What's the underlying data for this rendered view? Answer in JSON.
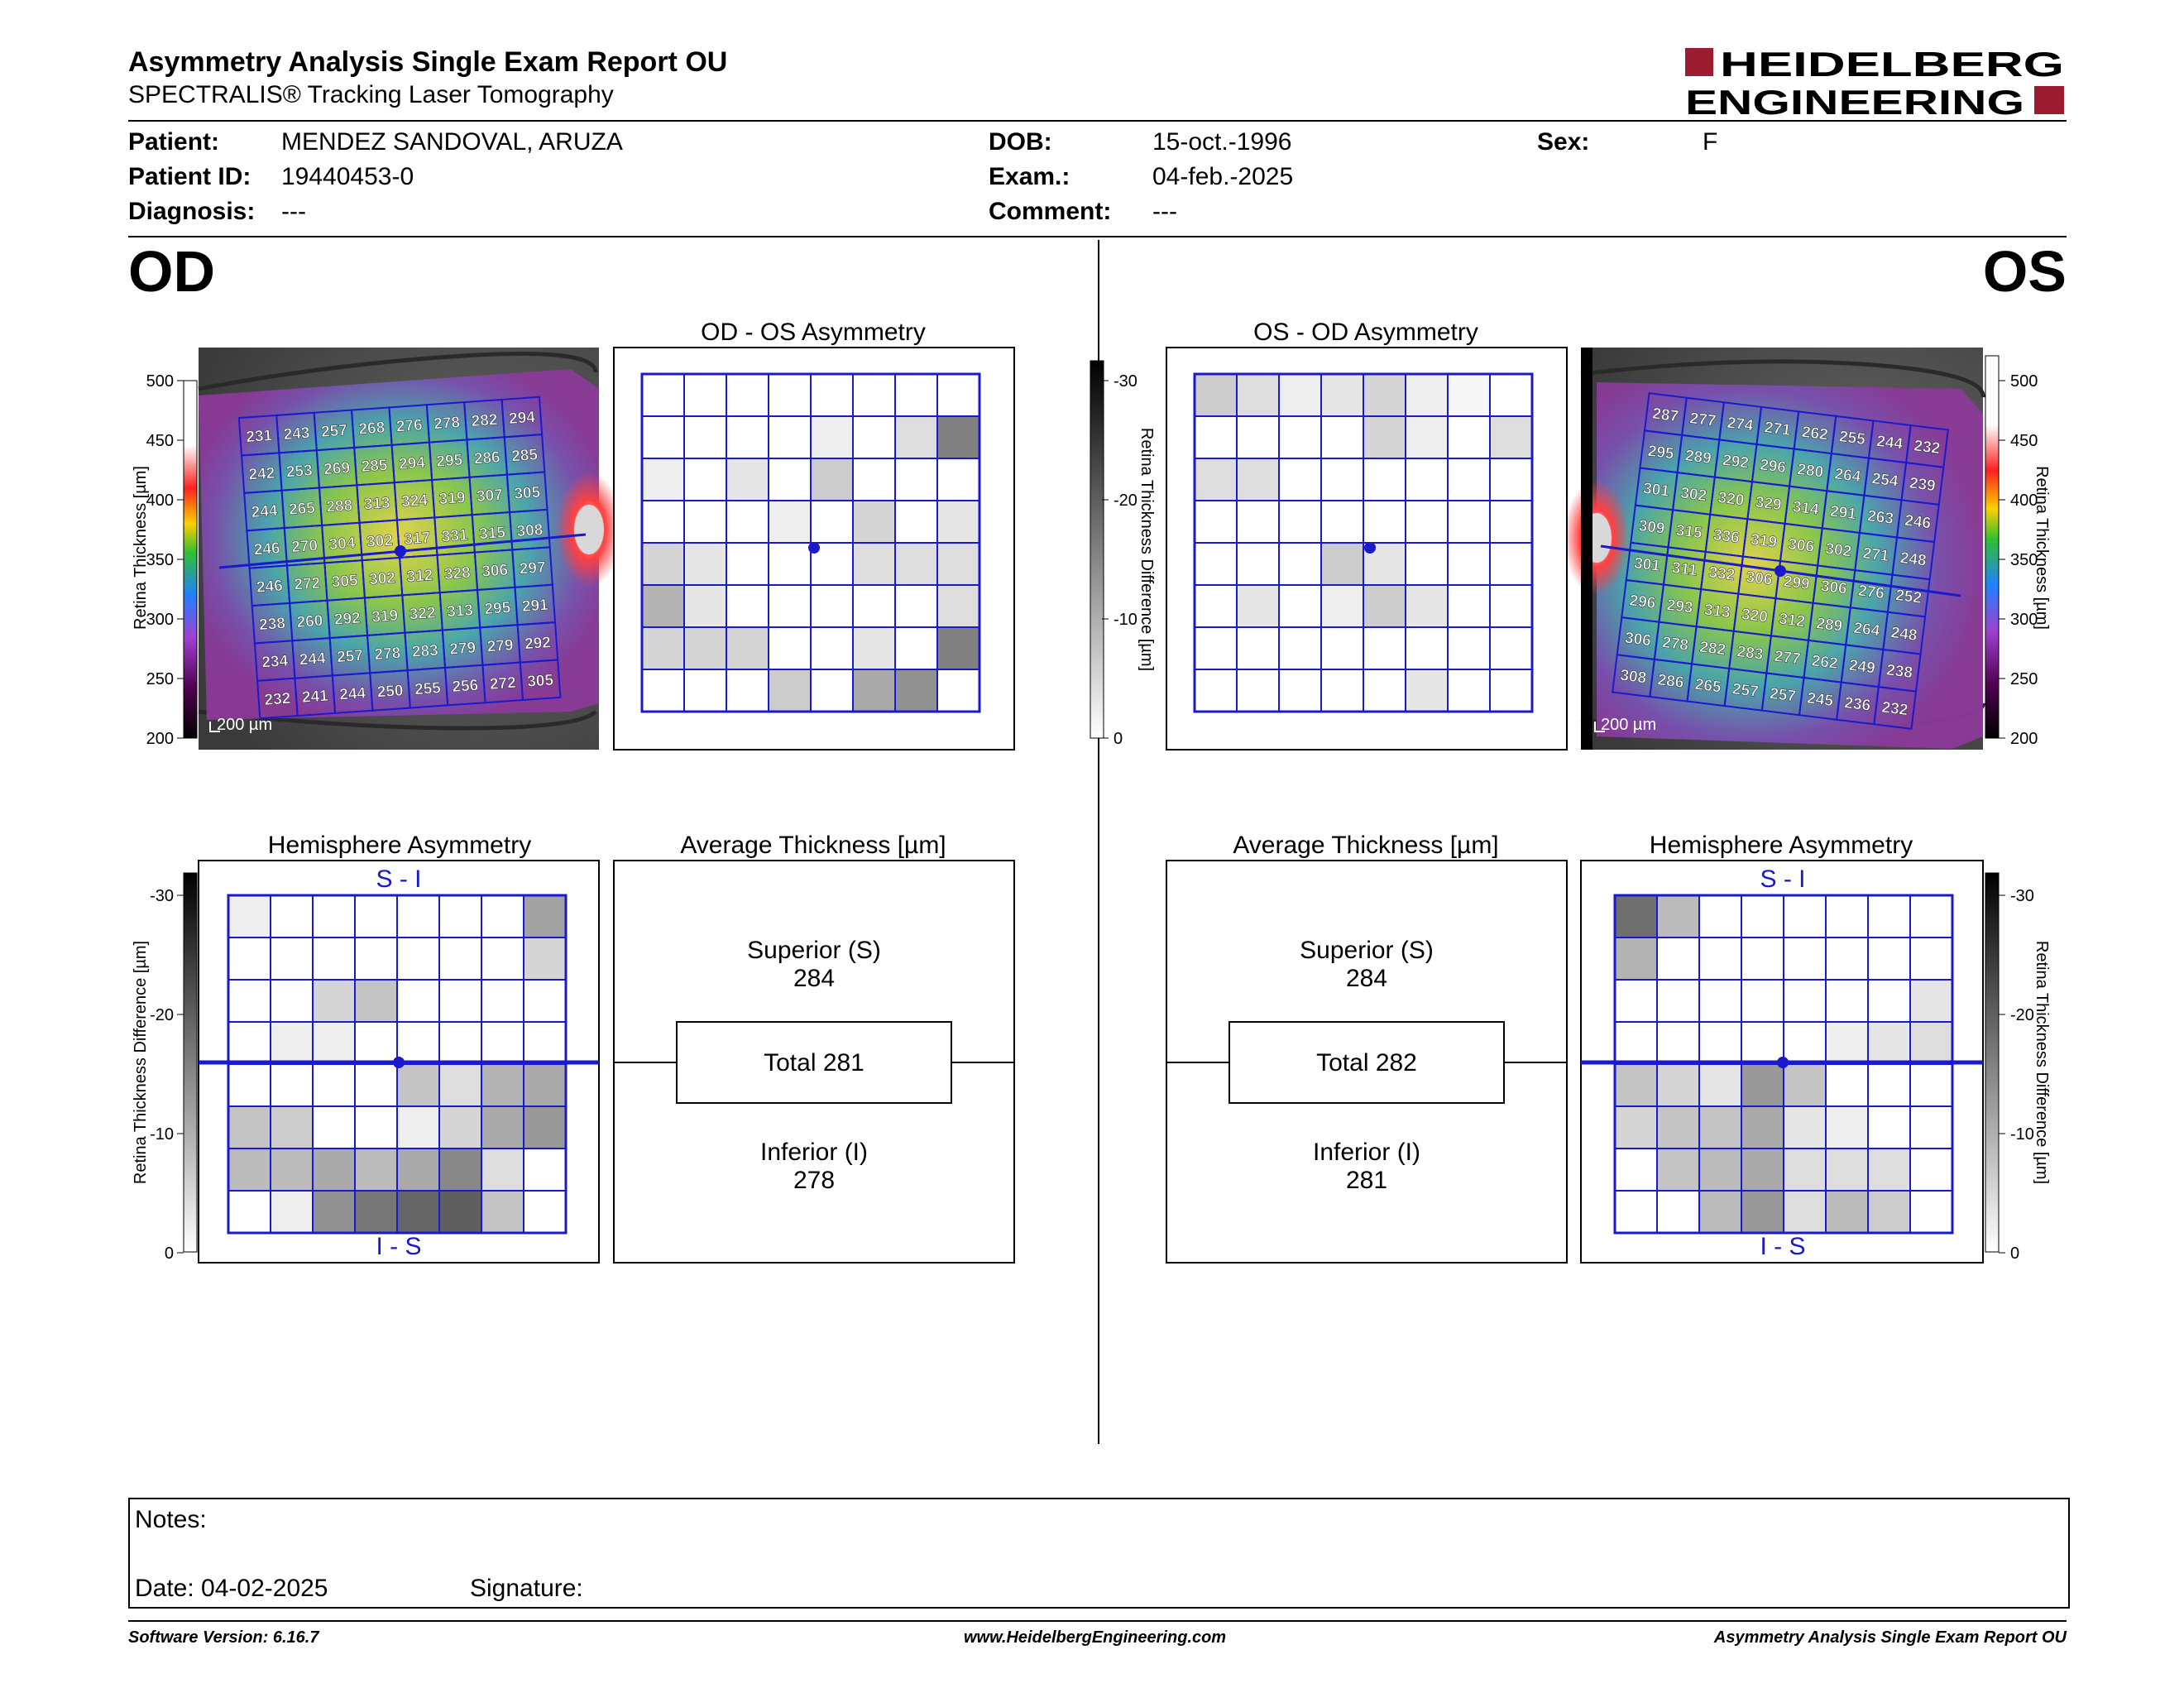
{
  "header": {
    "title": "Asymmetry Analysis Single Exam Report OU",
    "subtitle": "SPECTRALIS® Tracking Laser Tomography",
    "logo_line1": "HEIDELBERG",
    "logo_line2": "ENGINEERING",
    "logo_color": "#9b1b30"
  },
  "patient": {
    "patient_label": "Patient:",
    "patient_value": "MENDEZ SANDOVAL, ARUZA",
    "id_label": "Patient ID:",
    "id_value": "19440453-0",
    "diagnosis_label": "Diagnosis:",
    "diagnosis_value": "---",
    "dob_label": "DOB:",
    "dob_value": "15-oct.-1996",
    "exam_label": "Exam.:",
    "exam_value": "04-feb.-2025",
    "comment_label": "Comment:",
    "comment_value": "---",
    "sex_label": "Sex:",
    "sex_value": "F"
  },
  "eyes": {
    "od": "OD",
    "os": "OS"
  },
  "panels": {
    "od_os_title": "OD - OS Asymmetry",
    "os_od_title": "OS - OD Asymmetry",
    "hemi_title": "Hemisphere Asymmetry",
    "avg_title": "Average Thickness [µm]",
    "s_minus_i": "S - I",
    "i_minus_s": "I - S"
  },
  "scales": {
    "thickness_label": "Retina Thickness [µm]",
    "thickness_ticks": [
      "500",
      "450",
      "400",
      "350",
      "300",
      "250",
      "200"
    ],
    "diff_label": "Retina Thickness Difference [µm]",
    "diff_ticks": [
      "-30",
      "-20",
      "-10",
      "0"
    ],
    "scalebar": "200 µm"
  },
  "od_average": {
    "superior_label": "Superior (S)",
    "superior_value": "284",
    "total": "Total 281",
    "inferior_label": "Inferior (I)",
    "inferior_value": "278"
  },
  "os_average": {
    "superior_label": "Superior (S)",
    "superior_value": "284",
    "total": "Total 282",
    "inferior_label": "Inferior (I)",
    "inferior_value": "281"
  },
  "od_thickness": [
    [
      231,
      243,
      257,
      268,
      276,
      278,
      282,
      294
    ],
    [
      242,
      253,
      269,
      285,
      294,
      295,
      286,
      285
    ],
    [
      244,
      265,
      288,
      313,
      324,
      319,
      307,
      305
    ],
    [
      246,
      270,
      304,
      302,
      317,
      331,
      315,
      308
    ],
    [
      246,
      272,
      305,
      302,
      312,
      328,
      306,
      297
    ],
    [
      238,
      260,
      292,
      319,
      322,
      313,
      295,
      291
    ],
    [
      234,
      244,
      257,
      278,
      283,
      279,
      279,
      292
    ],
    [
      232,
      241,
      244,
      250,
      255,
      256,
      272,
      305
    ]
  ],
  "os_thickness": [
    [
      287,
      277,
      274,
      271,
      262,
      255,
      244,
      232
    ],
    [
      295,
      289,
      292,
      296,
      280,
      264,
      254,
      239
    ],
    [
      301,
      302,
      320,
      329,
      314,
      291,
      263,
      246
    ],
    [
      309,
      315,
      336,
      319,
      306,
      302,
      271,
      248
    ],
    [
      301,
      311,
      332,
      306,
      299,
      306,
      276,
      252
    ],
    [
      296,
      293,
      313,
      320,
      312,
      289,
      264,
      248
    ],
    [
      306,
      278,
      282,
      283,
      277,
      262,
      249,
      238
    ],
    [
      308,
      286,
      265,
      257,
      257,
      245,
      236,
      232
    ]
  ],
  "od_os_asym": [
    [
      0,
      0,
      0,
      0,
      0,
      0,
      0,
      0
    ],
    [
      0,
      0,
      0,
      0,
      2,
      0,
      4,
      15
    ],
    [
      2,
      0,
      3,
      0,
      6,
      0,
      0,
      0
    ],
    [
      0,
      0,
      0,
      2,
      0,
      5,
      0,
      3
    ],
    [
      5,
      3,
      0,
      0,
      0,
      4,
      4,
      4
    ],
    [
      9,
      3,
      0,
      0,
      0,
      0,
      0,
      4
    ],
    [
      5,
      5,
      5,
      0,
      0,
      3,
      0,
      15
    ],
    [
      0,
      0,
      0,
      6,
      0,
      10,
      13,
      0
    ]
  ],
  "os_od_asym": [
    [
      6,
      4,
      2,
      3,
      5,
      2,
      1,
      0
    ],
    [
      0,
      0,
      0,
      0,
      5,
      2,
      0,
      4
    ],
    [
      4,
      4,
      0,
      0,
      0,
      0,
      0,
      0
    ],
    [
      0,
      0,
      0,
      0,
      0,
      0,
      0,
      0
    ],
    [
      0,
      0,
      0,
      6,
      3,
      0,
      0,
      0
    ],
    [
      0,
      3,
      0,
      2,
      6,
      3,
      0,
      0
    ],
    [
      0,
      0,
      0,
      0,
      0,
      0,
      0,
      0
    ],
    [
      0,
      0,
      0,
      0,
      0,
      3,
      0,
      0
    ]
  ],
  "od_hemi": [
    [
      2,
      0,
      0,
      0,
      0,
      0,
      0,
      11
    ],
    [
      0,
      0,
      0,
      0,
      0,
      0,
      0,
      5
    ],
    [
      0,
      0,
      5,
      7,
      0,
      0,
      0,
      0
    ],
    [
      0,
      2,
      2,
      0,
      0,
      0,
      0,
      0
    ],
    [
      0,
      0,
      0,
      0,
      7,
      4,
      9,
      10
    ],
    [
      7,
      6,
      0,
      0,
      2,
      5,
      10,
      12
    ],
    [
      8,
      8,
      10,
      8,
      10,
      14,
      4,
      0
    ],
    [
      0,
      2,
      13,
      16,
      18,
      19,
      7,
      0
    ]
  ],
  "os_hemi": [
    [
      17,
      8,
      0,
      0,
      0,
      0,
      0,
      0
    ],
    [
      9,
      0,
      0,
      0,
      0,
      0,
      0,
      0
    ],
    [
      0,
      0,
      0,
      0,
      0,
      0,
      0,
      3
    ],
    [
      0,
      0,
      0,
      0,
      0,
      2,
      3,
      4
    ],
    [
      7,
      5,
      3,
      12,
      7,
      0,
      0,
      0
    ],
    [
      5,
      7,
      7,
      10,
      3,
      2,
      0,
      0
    ],
    [
      0,
      7,
      8,
      10,
      4,
      4,
      4,
      0
    ],
    [
      0,
      0,
      8,
      12,
      4,
      8,
      6,
      0
    ]
  ],
  "notes": {
    "label": "Notes:",
    "date": "Date: 04-02-2025",
    "signature": "Signature:"
  },
  "footer": {
    "version": "Software Version: 6.16.7",
    "website": "www.HeidelbergEngineering.com",
    "report": "Asymmetry Analysis Single Exam Report OU"
  },
  "colors": {
    "grid_blue": "#1a1acc",
    "accent": "#9b1b30"
  }
}
